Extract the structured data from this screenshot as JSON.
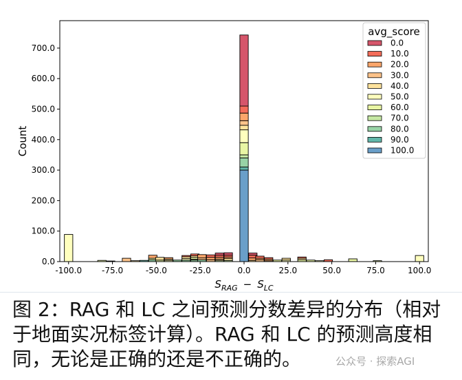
{
  "chart_data": {
    "type": "bar",
    "title": "",
    "ylabel": "Count",
    "xlabel_main": "S",
    "xlabel_sub1": "RAG",
    "xlabel_minus": "−",
    "xlabel_sub2": "LC",
    "xlim": [
      -105,
      105
    ],
    "ylim": [
      0,
      790
    ],
    "x_ticks": [
      -100,
      -75,
      -50,
      -25,
      0,
      25,
      50,
      75,
      100
    ],
    "x_tick_labels": [
      "-100.0",
      "-75.0",
      "-50.0",
      "-25.0",
      "0.0",
      "25.0",
      "50.0",
      "75.0",
      "100.0"
    ],
    "y_ticks": [
      0,
      100,
      200,
      300,
      400,
      500,
      600,
      700
    ],
    "y_tick_labels": [
      "0.0",
      "100.0",
      "200.0",
      "300.0",
      "400.0",
      "500.0",
      "600.0",
      "700.0"
    ],
    "bin_width": 4.8,
    "legend_title": "avg_score",
    "legend_position": "upper-right",
    "series": [
      {
        "name": "0.0",
        "color": "#d6566b"
      },
      {
        "name": "10.0",
        "color": "#f46d5a"
      },
      {
        "name": "20.0",
        "color": "#fba66b"
      },
      {
        "name": "30.0",
        "color": "#fdc38a"
      },
      {
        "name": "40.0",
        "color": "#fee39d"
      },
      {
        "name": "50.0",
        "color": "#ffffbe"
      },
      {
        "name": "60.0",
        "color": "#e9f6a4"
      },
      {
        "name": "70.0",
        "color": "#c6e8a4"
      },
      {
        "name": "80.0",
        "color": "#98d3a6"
      },
      {
        "name": "90.0",
        "color": "#62b7aa"
      },
      {
        "name": "100.0",
        "color": "#6a9fc9"
      }
    ],
    "bins": [
      {
        "x": -100,
        "counts": [
          0,
          0,
          0,
          0,
          0,
          89,
          0,
          0,
          0,
          0,
          0
        ]
      },
      {
        "x": -81,
        "counts": [
          0,
          0,
          0,
          0,
          0,
          0,
          4,
          0,
          0,
          0,
          0
        ]
      },
      {
        "x": -76,
        "counts": [
          0,
          0,
          0,
          0,
          0,
          0,
          0,
          2,
          0,
          0,
          0
        ]
      },
      {
        "x": -67,
        "counts": [
          0,
          0,
          0,
          11,
          0,
          0,
          0,
          0,
          0,
          0,
          0
        ]
      },
      {
        "x": -62,
        "counts": [
          0,
          0,
          0,
          0,
          3,
          0,
          0,
          0,
          0,
          0,
          0
        ]
      },
      {
        "x": -57,
        "counts": [
          0,
          0,
          0,
          0,
          0,
          0,
          0,
          0,
          0,
          4,
          0
        ]
      },
      {
        "x": -52,
        "counts": [
          0,
          0,
          10,
          0,
          0,
          0,
          5,
          0,
          6,
          0,
          0
        ]
      },
      {
        "x": -48,
        "counts": [
          0,
          0,
          0,
          0,
          9,
          0,
          5,
          0,
          0,
          0,
          0
        ]
      },
      {
        "x": -43,
        "counts": [
          0,
          0,
          5,
          0,
          4,
          4,
          0,
          0,
          0,
          0,
          0
        ]
      },
      {
        "x": -38,
        "counts": [
          0,
          0,
          0,
          0,
          0,
          0,
          0,
          0,
          5,
          0,
          0
        ]
      },
      {
        "x": -33,
        "counts": [
          0,
          4,
          0,
          0,
          6,
          5,
          0,
          0,
          5,
          0,
          0
        ]
      },
      {
        "x": -28,
        "counts": [
          0,
          6,
          0,
          0,
          5,
          0,
          6,
          3,
          5,
          0,
          0
        ]
      },
      {
        "x": -24,
        "counts": [
          0,
          0,
          11,
          6,
          0,
          0,
          0,
          0,
          6,
          0,
          0
        ]
      },
      {
        "x": -19,
        "counts": [
          0,
          8,
          8,
          6,
          0,
          0,
          0,
          0,
          0,
          0,
          0
        ]
      },
      {
        "x": -14,
        "counts": [
          7,
          7,
          6,
          4,
          0,
          0,
          0,
          4,
          0,
          0,
          0
        ]
      },
      {
        "x": -9,
        "counts": [
          8,
          6,
          5,
          0,
          6,
          0,
          0,
          4,
          0,
          0,
          0
        ]
      },
      {
        "x": 0,
        "counts": [
          233,
          23,
          25,
          15,
          15,
          42,
          40,
          10,
          30,
          10,
          300
        ]
      },
      {
        "x": 5,
        "counts": [
          7,
          9,
          8,
          0,
          4,
          0,
          0,
          0,
          0,
          0,
          0
        ]
      },
      {
        "x": 9,
        "counts": [
          0,
          7,
          5,
          6,
          0,
          0,
          0,
          0,
          0,
          0,
          0
        ]
      },
      {
        "x": 14,
        "counts": [
          0,
          5,
          5,
          3,
          0,
          0,
          0,
          0,
          0,
          0,
          0
        ]
      },
      {
        "x": 19,
        "counts": [
          0,
          0,
          0,
          0,
          0,
          0,
          5,
          0,
          0,
          0,
          0
        ]
      },
      {
        "x": 24,
        "counts": [
          0,
          0,
          0,
          0,
          6,
          5,
          0,
          0,
          0,
          0,
          0
        ]
      },
      {
        "x": 33,
        "counts": [
          0,
          4,
          0,
          0,
          5,
          0,
          6,
          0,
          0,
          0,
          0
        ]
      },
      {
        "x": 38,
        "counts": [
          0,
          0,
          0,
          0,
          0,
          0,
          5,
          0,
          0,
          0,
          0
        ]
      },
      {
        "x": 43,
        "counts": [
          0,
          0,
          0,
          0,
          0,
          3,
          0,
          0,
          0,
          0,
          0
        ]
      },
      {
        "x": 48,
        "counts": [
          0,
          6,
          0,
          0,
          0,
          0,
          0,
          0,
          0,
          0,
          0
        ]
      },
      {
        "x": 53,
        "counts": [
          0,
          0,
          0,
          0,
          0,
          0,
          0,
          0,
          0,
          0,
          0
        ]
      },
      {
        "x": 62,
        "counts": [
          0,
          0,
          0,
          0,
          0,
          0,
          9,
          0,
          0,
          0,
          0
        ]
      },
      {
        "x": 76,
        "counts": [
          0,
          0,
          0,
          0,
          0,
          0,
          3,
          0,
          0,
          0,
          0
        ]
      },
      {
        "x": 100,
        "counts": [
          0,
          0,
          0,
          0,
          0,
          20,
          0,
          0,
          0,
          0,
          0
        ]
      }
    ]
  },
  "caption": {
    "text": "图 2：RAG 和 LC 之间预测分数差异的分布（相对于地面实况标签计算）。RAG 和 LC 的预测高度相同，无论是正确的还是不正确的。"
  },
  "watermark": {
    "text": "公众号 · 探索AGI"
  }
}
